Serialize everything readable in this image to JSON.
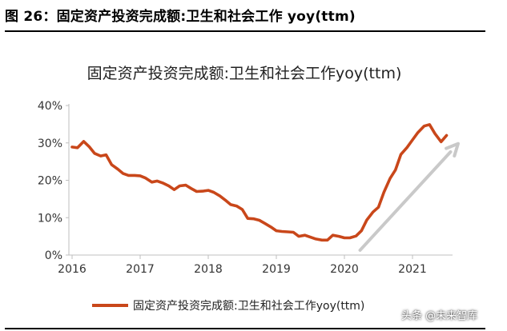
{
  "figure": {
    "caption": "图 26：固定资产投资完成额:卫生和社会工作 yoy(ttm)"
  },
  "watermark": "头条 @未来智库",
  "colors": {
    "series": "#c9471a",
    "arrow": "#c9c9c9",
    "axis": "#bfbfbf",
    "rule": "#000000"
  },
  "chart_data": {
    "type": "line",
    "title": "固定资产投资完成额:卫生和社会工作yoy(ttm)",
    "xlabel": "",
    "ylabel": "",
    "xlim": [
      2016.0,
      2021.67
    ],
    "ylim": [
      0,
      40
    ],
    "x_ticks": [
      2016,
      2017,
      2018,
      2019,
      2020,
      2021
    ],
    "x_tick_labels": [
      "2016",
      "2017",
      "2018",
      "2019",
      "2020",
      "2021"
    ],
    "y_ticks": [
      0,
      10,
      20,
      30,
      40
    ],
    "y_tick_labels": [
      "0%",
      "10%",
      "20%",
      "30%",
      "40%"
    ],
    "grid": false,
    "legend_position": "bottom",
    "series": [
      {
        "name": "固定资产投资完成额:卫生和社会工作yoy(ttm)",
        "color": "#c9471a",
        "points": [
          [
            2016.0,
            28.9
          ],
          [
            2016.08,
            28.7
          ],
          [
            2016.17,
            30.4
          ],
          [
            2016.25,
            29.0
          ],
          [
            2016.33,
            27.2
          ],
          [
            2016.42,
            26.5
          ],
          [
            2016.5,
            26.8
          ],
          [
            2016.58,
            24.2
          ],
          [
            2016.67,
            23.0
          ],
          [
            2016.75,
            21.8
          ],
          [
            2016.83,
            21.3
          ],
          [
            2016.92,
            21.3
          ],
          [
            2017.0,
            21.2
          ],
          [
            2017.08,
            20.6
          ],
          [
            2017.17,
            19.5
          ],
          [
            2017.25,
            19.8
          ],
          [
            2017.33,
            19.3
          ],
          [
            2017.42,
            18.5
          ],
          [
            2017.5,
            17.5
          ],
          [
            2017.58,
            18.5
          ],
          [
            2017.67,
            18.7
          ],
          [
            2017.75,
            17.8
          ],
          [
            2017.83,
            17.0
          ],
          [
            2017.92,
            17.1
          ],
          [
            2018.0,
            17.3
          ],
          [
            2018.08,
            16.8
          ],
          [
            2018.17,
            15.8
          ],
          [
            2018.25,
            14.7
          ],
          [
            2018.33,
            13.5
          ],
          [
            2018.42,
            13.1
          ],
          [
            2018.5,
            12.2
          ],
          [
            2018.58,
            9.8
          ],
          [
            2018.67,
            9.7
          ],
          [
            2018.75,
            9.3
          ],
          [
            2018.83,
            8.5
          ],
          [
            2018.92,
            7.5
          ],
          [
            2019.0,
            6.5
          ],
          [
            2019.08,
            6.3
          ],
          [
            2019.17,
            6.2
          ],
          [
            2019.25,
            6.1
          ],
          [
            2019.33,
            5.0
          ],
          [
            2019.42,
            5.3
          ],
          [
            2019.5,
            4.8
          ],
          [
            2019.58,
            4.3
          ],
          [
            2019.67,
            4.0
          ],
          [
            2019.75,
            4.0
          ],
          [
            2019.83,
            5.3
          ],
          [
            2019.92,
            5.0
          ],
          [
            2020.0,
            4.6
          ],
          [
            2020.08,
            4.6
          ],
          [
            2020.17,
            5.1
          ],
          [
            2020.25,
            6.5
          ],
          [
            2020.33,
            9.4
          ],
          [
            2020.42,
            11.5
          ],
          [
            2020.5,
            12.8
          ],
          [
            2020.58,
            16.8
          ],
          [
            2020.67,
            20.5
          ],
          [
            2020.75,
            22.8
          ],
          [
            2020.83,
            26.9
          ],
          [
            2020.92,
            28.8
          ],
          [
            2021.0,
            30.8
          ],
          [
            2021.08,
            32.8
          ],
          [
            2021.17,
            34.5
          ],
          [
            2021.25,
            34.9
          ],
          [
            2021.33,
            32.5
          ],
          [
            2021.42,
            30.3
          ],
          [
            2021.5,
            32.0
          ]
        ]
      }
    ],
    "annotations": [
      {
        "type": "arrow",
        "from": [
          2020.23,
          1.3
        ],
        "to": [
          2021.67,
          29.8
        ]
      }
    ]
  }
}
